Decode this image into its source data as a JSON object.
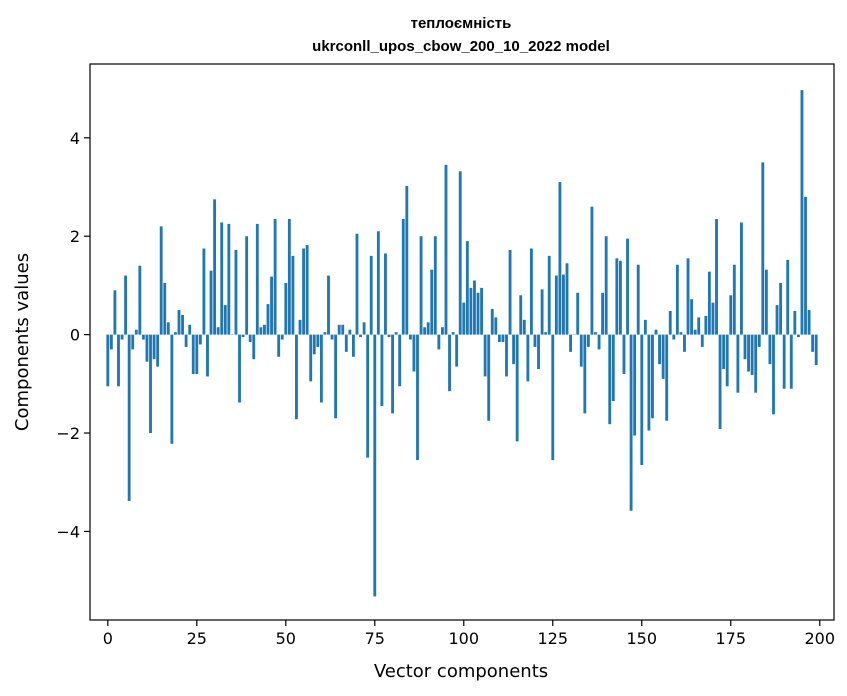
{
  "chart_data": {
    "type": "bar",
    "title": [
      "теплоємність",
      "ukrconll_upos_cbow_200_10_2022 model"
    ],
    "xlabel": "Vector components",
    "ylabel": "Components values",
    "xlim": [
      -5,
      204
    ],
    "ylim": [
      -5.8,
      5.5
    ],
    "xticks": [
      0,
      25,
      50,
      75,
      100,
      125,
      150,
      175,
      200
    ],
    "yticks": [
      -4,
      -2,
      0,
      2,
      4
    ],
    "grid": false,
    "bar_color": "#1f77b4",
    "x": [
      0,
      1,
      2,
      3,
      4,
      5,
      6,
      7,
      8,
      9,
      10,
      11,
      12,
      13,
      14,
      15,
      16,
      17,
      18,
      19,
      20,
      21,
      22,
      23,
      24,
      25,
      26,
      27,
      28,
      29,
      30,
      31,
      32,
      33,
      34,
      35,
      36,
      37,
      38,
      39,
      40,
      41,
      42,
      43,
      44,
      45,
      46,
      47,
      48,
      49,
      50,
      51,
      52,
      53,
      54,
      55,
      56,
      57,
      58,
      59,
      60,
      61,
      62,
      63,
      64,
      65,
      66,
      67,
      68,
      69,
      70,
      71,
      72,
      73,
      74,
      75,
      76,
      77,
      78,
      79,
      80,
      81,
      82,
      83,
      84,
      85,
      86,
      87,
      88,
      89,
      90,
      91,
      92,
      93,
      94,
      95,
      96,
      97,
      98,
      99,
      100,
      101,
      102,
      103,
      104,
      105,
      106,
      107,
      108,
      109,
      110,
      111,
      112,
      113,
      114,
      115,
      116,
      117,
      118,
      119,
      120,
      121,
      122,
      123,
      124,
      125,
      126,
      127,
      128,
      129,
      130,
      131,
      132,
      133,
      134,
      135,
      136,
      137,
      138,
      139,
      140,
      141,
      142,
      143,
      144,
      145,
      146,
      147,
      148,
      149,
      150,
      151,
      152,
      153,
      154,
      155,
      156,
      157,
      158,
      159,
      160,
      161,
      162,
      163,
      164,
      165,
      166,
      167,
      168,
      169,
      170,
      171,
      172,
      173,
      174,
      175,
      176,
      177,
      178,
      179,
      180,
      181,
      182,
      183,
      184,
      185,
      186,
      187,
      188,
      189,
      190,
      191,
      192,
      193,
      194,
      195,
      196,
      197,
      198,
      199
    ],
    "values": [
      -1.05,
      -0.3,
      0.9,
      -1.05,
      -0.1,
      1.2,
      -3.38,
      -0.3,
      0.1,
      1.4,
      -0.1,
      -0.55,
      -2.0,
      -0.5,
      -0.65,
      2.2,
      1.05,
      0.25,
      -2.22,
      0.05,
      0.5,
      0.4,
      -0.25,
      0.2,
      -0.8,
      -0.8,
      -0.2,
      1.75,
      -0.85,
      1.3,
      2.75,
      0.15,
      2.28,
      0.6,
      2.25,
      0.0,
      1.72,
      -1.38,
      -0.05,
      2.0,
      -0.15,
      -0.5,
      2.25,
      0.15,
      0.2,
      0.62,
      1.18,
      2.35,
      -0.45,
      -0.1,
      1.05,
      2.35,
      1.6,
      -1.72,
      0.3,
      1.75,
      1.82,
      -0.95,
      -0.4,
      -0.25,
      -1.38,
      0.05,
      1.2,
      -0.1,
      -1.7,
      0.2,
      0.2,
      -0.35,
      0.1,
      -0.45,
      2.05,
      -0.05,
      0.25,
      -2.5,
      1.6,
      -5.32,
      2.1,
      -1.45,
      1.65,
      -0.05,
      -1.6,
      0.05,
      -1.05,
      2.35,
      3.02,
      -0.1,
      -0.75,
      -2.55,
      2.0,
      0.15,
      0.25,
      1.32,
      2.0,
      -0.3,
      0.15,
      3.45,
      -1.15,
      0.05,
      -0.65,
      3.32,
      0.65,
      1.9,
      0.95,
      1.1,
      0.85,
      0.95,
      -0.85,
      -1.75,
      0.52,
      0.35,
      -0.15,
      -0.15,
      -0.85,
      1.72,
      -0.6,
      -2.17,
      0.8,
      0.3,
      -0.95,
      1.75,
      -0.25,
      -0.7,
      0.92,
      0.05,
      1.6,
      -2.55,
      1.2,
      3.1,
      1.22,
      1.45,
      -0.35,
      0.0,
      0.85,
      -0.65,
      -1.6,
      -0.25,
      2.6,
      0.05,
      -0.3,
      0.85,
      2.0,
      -1.82,
      -1.35,
      1.55,
      1.5,
      -0.8,
      1.95,
      -3.58,
      -2.05,
      1.42,
      -2.65,
      0.3,
      -1.95,
      -1.7,
      0.1,
      -0.6,
      -0.9,
      -1.75,
      0.48,
      -0.1,
      1.42,
      0.05,
      -0.35,
      1.55,
      0.72,
      0.1,
      0.35,
      -0.25,
      0.38,
      1.28,
      0.65,
      2.35,
      -1.92,
      -0.7,
      -1.05,
      0.8,
      1.42,
      -1.18,
      2.28,
      -0.5,
      -0.75,
      -0.82,
      -1.18,
      -0.25,
      3.5,
      1.32,
      -0.6,
      -1.62,
      0.6,
      1.05,
      -1.1,
      1.52,
      -1.1,
      0.48,
      -0.05,
      4.97,
      2.8,
      0.5,
      -0.35,
      -0.62
    ]
  }
}
